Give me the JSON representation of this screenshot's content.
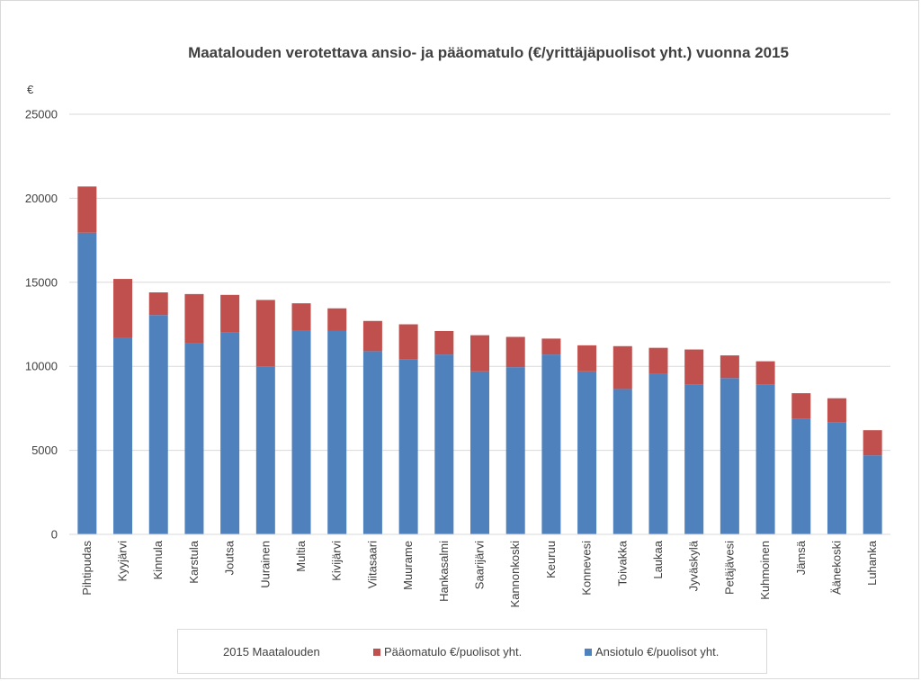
{
  "chart_data": {
    "type": "bar",
    "stacked": true,
    "title": "Maatalouden verotettava ansio- ja pääomatulo (€/yrittäjäpuolisot yht.) vuonna 2015",
    "ylabel": "€",
    "xlabel": "",
    "ylim": [
      0,
      25000
    ],
    "yticks": [
      0,
      5000,
      10000,
      15000,
      20000,
      25000
    ],
    "grid": true,
    "legend_position": "bottom",
    "legend_title": "2015 Maatalouden",
    "categories": [
      "Pihtipudas",
      "Kyyjärvi",
      "Kinnula",
      "Karstula",
      "Joutsa",
      "Uurainen",
      "Multia",
      "Kivijärvi",
      "Viitasaari",
      "Muurame",
      "Hankasalmi",
      "Saarijärvi",
      "Kannonkoski",
      "Keuruu",
      "Konnevesi",
      "Toivakka",
      "Laukaa",
      "Jyväskylä",
      "Petäjävesi",
      "Kuhmoinen",
      "Jämsä",
      "Äänekoski",
      "Luhanka"
    ],
    "series": [
      {
        "name": "Ansiotulo €/puolisot yht.",
        "color": "#4f81bd",
        "values": [
          17950,
          11700,
          13050,
          11400,
          12000,
          10000,
          12150,
          12100,
          10900,
          10400,
          10700,
          9700,
          9950,
          10700,
          9700,
          8650,
          9550,
          8900,
          9300,
          8900,
          6900,
          6650,
          4700
        ]
      },
      {
        "name": "Pääomatulo €/puolisot yht.",
        "color": "#c0504d",
        "values": [
          2750,
          3500,
          1350,
          2900,
          2250,
          3950,
          1600,
          1350,
          1800,
          2100,
          1400,
          2150,
          1800,
          950,
          1550,
          2550,
          1550,
          2100,
          1350,
          1400,
          1500,
          1450,
          1500
        ]
      }
    ]
  }
}
